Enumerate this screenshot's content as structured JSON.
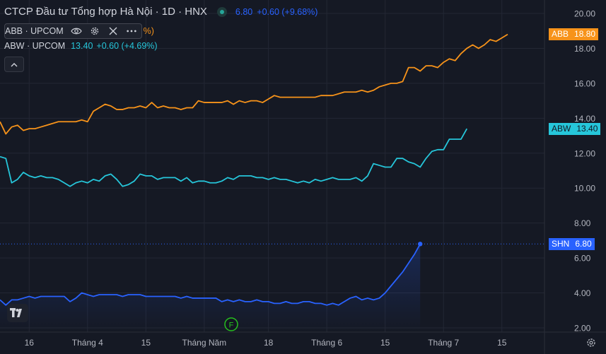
{
  "header": {
    "title": "CTCP Đầu tư Tổng hợp Hà Nội · 1D · HNX",
    "price": "6.80",
    "change": "+0.60 (+9.68%)"
  },
  "legend": {
    "abb": {
      "label": "ABB · UPCOM",
      "hidden_change": "%)"
    },
    "abw": {
      "label": "ABW · UPCOM",
      "price": "13.40",
      "change": "+0.60 (+4.69%)"
    }
  },
  "price_tags": {
    "abb": {
      "name": "ABB",
      "value": "18.80",
      "color": "#f7931a"
    },
    "abw": {
      "name": "ABW",
      "value": "13.40",
      "color": "#26c6da"
    },
    "shn": {
      "name": "SHN",
      "value": "6.80",
      "color": "#2962ff"
    }
  },
  "event_marker": "F",
  "icons": [
    "eye-icon",
    "gear-icon",
    "close-icon",
    "more-icon",
    "chevron-up-icon",
    "tradingview-logo-icon",
    "settings-icon"
  ],
  "colors": {
    "background": "#151924",
    "grid": "#232734",
    "text": "#b2b5be"
  },
  "chart_data": {
    "type": "line",
    "y_ticks": [
      "20.00",
      "18.00",
      "16.00",
      "14.00",
      "12.00",
      "10.00",
      "8.00",
      "6.00",
      "4.00",
      "2.00"
    ],
    "ylim": [
      2,
      20
    ],
    "x_tick_labels": [
      "16",
      "Tháng 4",
      "15",
      "Tháng Năm",
      "18",
      "Tháng 6",
      "15",
      "Tháng 7",
      "15"
    ],
    "x_tick_index": [
      5,
      15,
      25,
      35,
      46,
      56,
      66,
      76,
      86
    ],
    "x_range": [
      0,
      90
    ],
    "grid": true,
    "series": [
      {
        "name": "ABB",
        "color": "#f7931a",
        "values": [
          13.8,
          13.1,
          13.5,
          13.6,
          13.3,
          13.4,
          13.4,
          13.5,
          13.6,
          13.7,
          13.8,
          13.8,
          13.8,
          13.8,
          13.9,
          13.8,
          14.4,
          14.6,
          14.8,
          14.7,
          14.5,
          14.5,
          14.6,
          14.6,
          14.7,
          14.6,
          14.9,
          14.6,
          14.7,
          14.6,
          14.6,
          14.5,
          14.6,
          14.6,
          15.0,
          14.9,
          14.9,
          14.9,
          14.9,
          15.0,
          14.8,
          15.0,
          14.9,
          15.0,
          15.0,
          14.9,
          15.1,
          15.3,
          15.2,
          15.2,
          15.2,
          15.2,
          15.2,
          15.2,
          15.2,
          15.3,
          15.3,
          15.3,
          15.4,
          15.5,
          15.5,
          15.5,
          15.6,
          15.5,
          15.6,
          15.8,
          15.9,
          16.0,
          16.0,
          16.1,
          16.9,
          16.9,
          16.7,
          17.0,
          17.0,
          16.9,
          17.2,
          17.4,
          17.3,
          17.7,
          18.0,
          18.2,
          18.0,
          18.2,
          18.5,
          18.4,
          18.6,
          18.8
        ]
      },
      {
        "name": "ABW",
        "color": "#26c6da",
        "values": [
          11.8,
          11.7,
          10.3,
          10.5,
          10.9,
          10.7,
          10.6,
          10.7,
          10.6,
          10.6,
          10.5,
          10.3,
          10.1,
          10.3,
          10.4,
          10.3,
          10.5,
          10.4,
          10.7,
          10.8,
          10.5,
          10.1,
          10.2,
          10.4,
          10.8,
          10.7,
          10.7,
          10.5,
          10.6,
          10.6,
          10.6,
          10.4,
          10.6,
          10.3,
          10.4,
          10.4,
          10.3,
          10.3,
          10.4,
          10.6,
          10.5,
          10.7,
          10.7,
          10.7,
          10.6,
          10.6,
          10.5,
          10.6,
          10.5,
          10.5,
          10.4,
          10.3,
          10.4,
          10.3,
          10.5,
          10.4,
          10.5,
          10.6,
          10.5,
          10.5,
          10.5,
          10.6,
          10.4,
          10.7,
          11.4,
          11.3,
          11.2,
          11.2,
          11.7,
          11.7,
          11.5,
          11.4,
          11.2,
          11.7,
          12.1,
          12.2,
          12.2,
          12.8,
          12.8,
          12.8,
          13.4
        ]
      },
      {
        "name": "SHN",
        "color": "#2962ff",
        "values": [
          3.6,
          3.3,
          3.6,
          3.6,
          3.7,
          3.8,
          3.7,
          3.8,
          3.8,
          3.8,
          3.8,
          3.8,
          3.5,
          3.7,
          4.0,
          3.9,
          3.8,
          3.9,
          3.9,
          3.9,
          3.9,
          3.8,
          3.9,
          3.9,
          3.9,
          3.8,
          3.8,
          3.8,
          3.8,
          3.8,
          3.8,
          3.7,
          3.8,
          3.7,
          3.7,
          3.7,
          3.7,
          3.7,
          3.5,
          3.6,
          3.5,
          3.6,
          3.5,
          3.5,
          3.6,
          3.5,
          3.5,
          3.4,
          3.4,
          3.5,
          3.4,
          3.4,
          3.5,
          3.5,
          3.4,
          3.4,
          3.3,
          3.4,
          3.3,
          3.5,
          3.7,
          3.8,
          3.6,
          3.7,
          3.6,
          3.7,
          4.0,
          4.4,
          4.8,
          5.2,
          5.7,
          6.2,
          6.8
        ]
      }
    ]
  }
}
